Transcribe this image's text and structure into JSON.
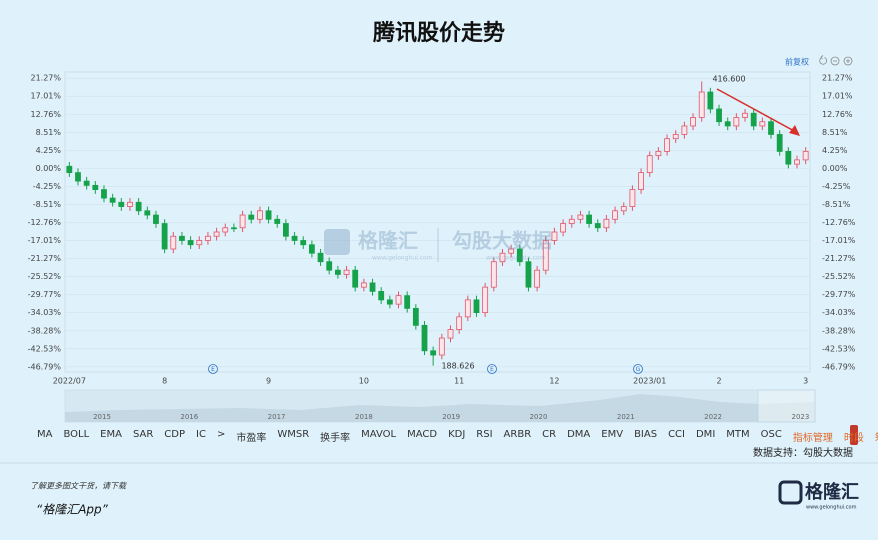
{
  "chart_data": {
    "type": "candlestick",
    "title": "腾讯股价走势",
    "categories": [
      "2022/07",
      null,
      null,
      null,
      null,
      null,
      null,
      null,
      null,
      null,
      null,
      "8",
      null,
      null,
      null,
      null,
      null,
      null,
      null,
      null,
      null,
      null,
      null,
      "9",
      null,
      null,
      null,
      null,
      null,
      null,
      null,
      null,
      null,
      null,
      "10",
      null,
      null,
      null,
      null,
      null,
      null,
      null,
      null,
      null,
      null,
      "11",
      null,
      null,
      null,
      null,
      null,
      null,
      null,
      null,
      null,
      null,
      "12",
      null,
      null,
      null,
      null,
      null,
      null,
      null,
      null,
      null,
      null,
      "2023/01",
      null,
      null,
      null,
      null,
      null,
      null,
      null,
      "2",
      null,
      null,
      null,
      null,
      null,
      null,
      null,
      null,
      null,
      "3"
    ],
    "open": [
      0.5,
      -1,
      -3,
      -4,
      -5,
      -7,
      -8,
      -9,
      -8,
      -10,
      -11,
      -13,
      -19,
      -16,
      -17,
      -18,
      -17,
      -16,
      -15,
      -14,
      -14,
      -11,
      -12,
      -10,
      -12,
      -13,
      -16,
      -17,
      -18,
      -20,
      -22,
      -24,
      -25,
      -24,
      -28,
      -27,
      -29,
      -31,
      -32,
      -30,
      -33,
      -37,
      -43,
      -44,
      -40,
      -38,
      -35,
      -31,
      -34,
      -28,
      -22,
      -20,
      -19,
      -22,
      -28,
      -24,
      -17,
      -15,
      -13,
      -12,
      -11,
      -13,
      -14,
      -12,
      -10,
      -9,
      -5,
      -1,
      3,
      4,
      7,
      8,
      10,
      12,
      18,
      14,
      11,
      10,
      12,
      13,
      10,
      11,
      8,
      4,
      1,
      2
    ],
    "close": [
      -1,
      -3,
      -4,
      -5,
      -7,
      -8,
      -9,
      -8,
      -10,
      -11,
      -13,
      -19,
      -16,
      -17,
      -18,
      -17,
      -16,
      -15,
      -14,
      -14,
      -11,
      -12,
      -10,
      -12,
      -13,
      -16,
      -17,
      -18,
      -20,
      -22,
      -24,
      -25,
      -24,
      -28,
      -27,
      -29,
      -31,
      -32,
      -30,
      -33,
      -37,
      -43,
      -44,
      -40,
      -38,
      -35,
      -31,
      -34,
      -28,
      -22,
      -20,
      -19,
      -22,
      -28,
      -24,
      -17,
      -15,
      -13,
      -12,
      -11,
      -13,
      -14,
      -12,
      -10,
      -9,
      -5,
      -1,
      3,
      4,
      7,
      8,
      10,
      12,
      18,
      14,
      11,
      10,
      12,
      13,
      10,
      11,
      8,
      4,
      1,
      2,
      4
    ],
    "high": [
      1.5,
      0,
      -2,
      -3,
      -4,
      -6,
      -7,
      -7,
      -7,
      -9,
      -10,
      -12,
      -15,
      -15,
      -16,
      -16,
      -15,
      -14,
      -13,
      -13,
      -10,
      -10,
      -9,
      -9,
      -11,
      -12,
      -15,
      -16,
      -17,
      -19,
      -21,
      -23,
      -23,
      -23,
      -26,
      -26,
      -28,
      -30,
      -29,
      -29,
      -32,
      -36,
      -42,
      -39,
      -37,
      -34,
      -30,
      -30,
      -27,
      -21,
      -19,
      -18,
      -18,
      -21,
      -23,
      -16,
      -14,
      -12,
      -11,
      -10,
      -10,
      -12,
      -11,
      -9,
      -8,
      -4,
      0,
      4,
      5,
      8,
      9,
      11,
      13,
      20.5,
      19,
      15,
      12,
      13,
      14,
      14,
      12,
      12,
      9,
      5,
      3,
      5
    ],
    "low": [
      -2,
      -4,
      -5,
      -6,
      -8,
      -9,
      -10,
      -10,
      -11,
      -12,
      -14,
      -20,
      -20,
      -18,
      -19,
      -19,
      -18,
      -17,
      -16,
      -15,
      -15,
      -13,
      -13,
      -13,
      -14,
      -17,
      -18,
      -19,
      -21,
      -23,
      -25,
      -26,
      -26,
      -29,
      -29,
      -30,
      -32,
      -33,
      -33,
      -34,
      -38,
      -44,
      -46.5,
      -45,
      -41,
      -39,
      -36,
      -35,
      -35,
      -29,
      -23,
      -21,
      -23,
      -29,
      -29,
      -25,
      -18,
      -16,
      -14,
      -13,
      -14,
      -15,
      -15,
      -13,
      -11,
      -10,
      -6,
      -2,
      2,
      3,
      6,
      7,
      9,
      11,
      13,
      10,
      9,
      9,
      11,
      9,
      9,
      7,
      3,
      0,
      0,
      1
    ],
    "up_color": "#e0566a",
    "down_color": "#15a24b",
    "ylim": [
      -48,
      22.72
    ],
    "yticks": [
      {
        "value": 21.27,
        "label": "21.27%"
      },
      {
        "value": 17.01,
        "label": "17.01%"
      },
      {
        "value": 12.76,
        "label": "12.76%"
      },
      {
        "value": 8.51,
        "label": "8.51%"
      },
      {
        "value": 4.25,
        "label": "4.25%"
      },
      {
        "value": 0,
        "label": "0.00%"
      },
      {
        "value": -4.25,
        "label": "-4.25%"
      },
      {
        "value": -8.51,
        "label": "-8.51%"
      },
      {
        "value": -12.76,
        "label": "-12.76%"
      },
      {
        "value": -17.01,
        "label": "-17.01%"
      },
      {
        "value": -21.27,
        "label": "-21.27%"
      },
      {
        "value": -25.52,
        "label": "-25.52%"
      },
      {
        "value": -29.77,
        "label": "-29.77%"
      },
      {
        "value": -34.03,
        "label": "-34.03%"
      },
      {
        "value": -38.28,
        "label": "-38.28%"
      },
      {
        "value": -42.53,
        "label": "-42.53%"
      },
      {
        "value": -46.79,
        "label": "-46.79%"
      }
    ],
    "grid": true,
    "annotations": [
      "416.600",
      "188.626"
    ],
    "event_markers": [
      "E",
      "E",
      "G"
    ]
  },
  "toolbar": {
    "adjust": "前复权"
  },
  "navigator": {
    "years": [
      "2015",
      "2016",
      "2017",
      "2018",
      "2019",
      "2020",
      "2021",
      "2022",
      "2023"
    ]
  },
  "indicators": [
    "MA",
    "BOLL",
    "EMA",
    "SAR",
    "CDP",
    "IC",
    ">",
    "市盈率",
    "WMSR",
    "换手率",
    "MAVOL",
    "MACD",
    "KDJ",
    "RSI",
    "ARBR",
    "CR",
    "DMA",
    "EMV",
    "BIAS",
    "CCI",
    "DMI",
    "MTM",
    "OSC"
  ],
  "indicator_tools": [
    "指标管理",
    "时段",
    "筹码"
  ],
  "source": "数据支持：勾股大数据",
  "watermark": {
    "brand": "格隆汇",
    "data_brand": "勾股大数据",
    "brand_url": "www.gelonghui.com",
    "data_url": "www.gogudata.com"
  },
  "footer": {
    "prompt": "了解更多图文干货，请下载",
    "app": "“格隆汇App”",
    "logo": "格隆汇",
    "logo_url": "www.gelonghui.com"
  }
}
